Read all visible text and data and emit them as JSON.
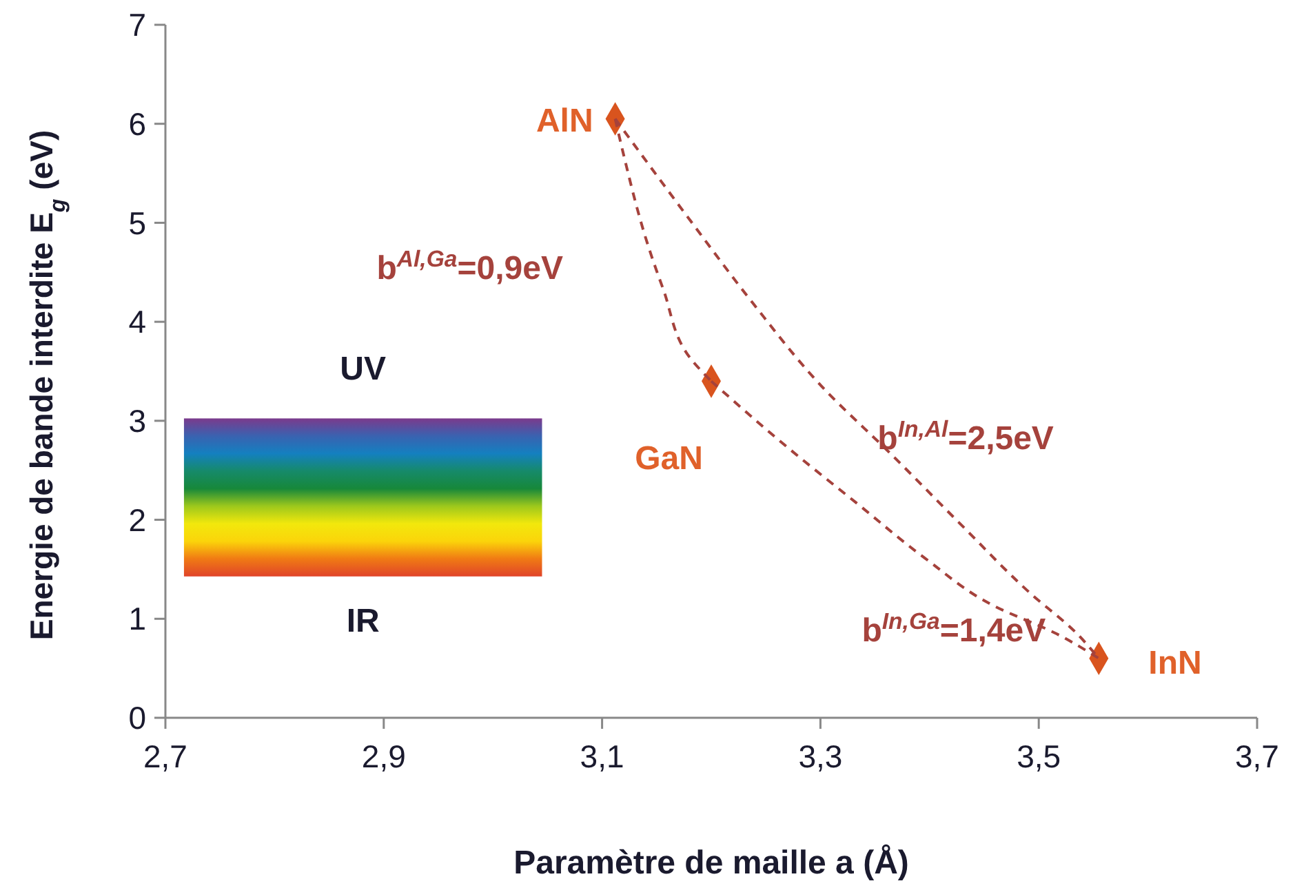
{
  "chart_data": {
    "type": "scatter",
    "xlabel": "Paramètre de maille a (Å)",
    "ylabel": "Energie de bande interdite E$_{g}$ (eV)",
    "xlim": [
      2.7,
      3.7
    ],
    "xticks": [
      {
        "value": 2.7,
        "label": "2,7"
      },
      {
        "value": 2.9,
        "label": "2,9"
      },
      {
        "value": 3.1,
        "label": "3,1"
      },
      {
        "value": 3.3,
        "label": "3,3"
      },
      {
        "value": 3.5,
        "label": "3,5"
      },
      {
        "value": 3.7,
        "label": "3,7"
      }
    ],
    "ylim": [
      0,
      7
    ],
    "yticks": [
      0,
      1,
      2,
      3,
      4,
      5,
      6,
      7
    ],
    "grid": false,
    "series": [
      {
        "color": "#d9541e",
        "marker": "diamond",
        "x": [
          3.112,
          3.2,
          3.555
        ],
        "values": [
          6.05,
          3.4,
          0.6
        ]
      },
      {
        "type": "line",
        "color": "#a5423c",
        "line_style": "dashed",
        "marker": "none",
        "x": [
          3.112,
          3.119,
          3.143,
          3.156,
          3.181,
          3.2
        ],
        "values": [
          6.05,
          5.72,
          4.74,
          4.33,
          3.63,
          3.4
        ]
      },
      {
        "type": "line",
        "color": "#a5423c",
        "line_style": "dashed",
        "marker": "none",
        "x": [
          3.2,
          3.27,
          3.333,
          3.396,
          3.459,
          3.516,
          3.555
        ],
        "values": [
          3.4,
          2.73,
          2.17,
          1.61,
          1.13,
          0.85,
          0.6
        ]
      },
      {
        "type": "line",
        "color": "#a5423c",
        "line_style": "dashed",
        "marker": "none",
        "x": [
          3.112,
          3.181,
          3.238,
          3.301,
          3.365,
          3.428,
          3.491,
          3.535,
          3.555
        ],
        "values": [
          6.05,
          5.02,
          4.19,
          3.35,
          2.66,
          1.96,
          1.27,
          0.85,
          0.6
        ]
      }
    ],
    "annotations": [
      {
        "text": "AlN",
        "x": 3.112,
        "y": 6.05
      },
      {
        "text": "GaN",
        "x": 3.2,
        "y": 3.4
      },
      {
        "text": "InN",
        "x": 3.555,
        "y": 0.6
      },
      {
        "text": "b$^{Al,Ga}$=0,9eV",
        "x": 3.143,
        "y": 4.74
      },
      {
        "text": "b$^{In,Al}$=2,5eV",
        "x": 3.365,
        "y": 2.66
      },
      {
        "text": "b$^{In,Ga}$=1,4eV",
        "x": 3.396,
        "y": 1.61
      },
      "UV",
      "IR"
    ]
  }
}
